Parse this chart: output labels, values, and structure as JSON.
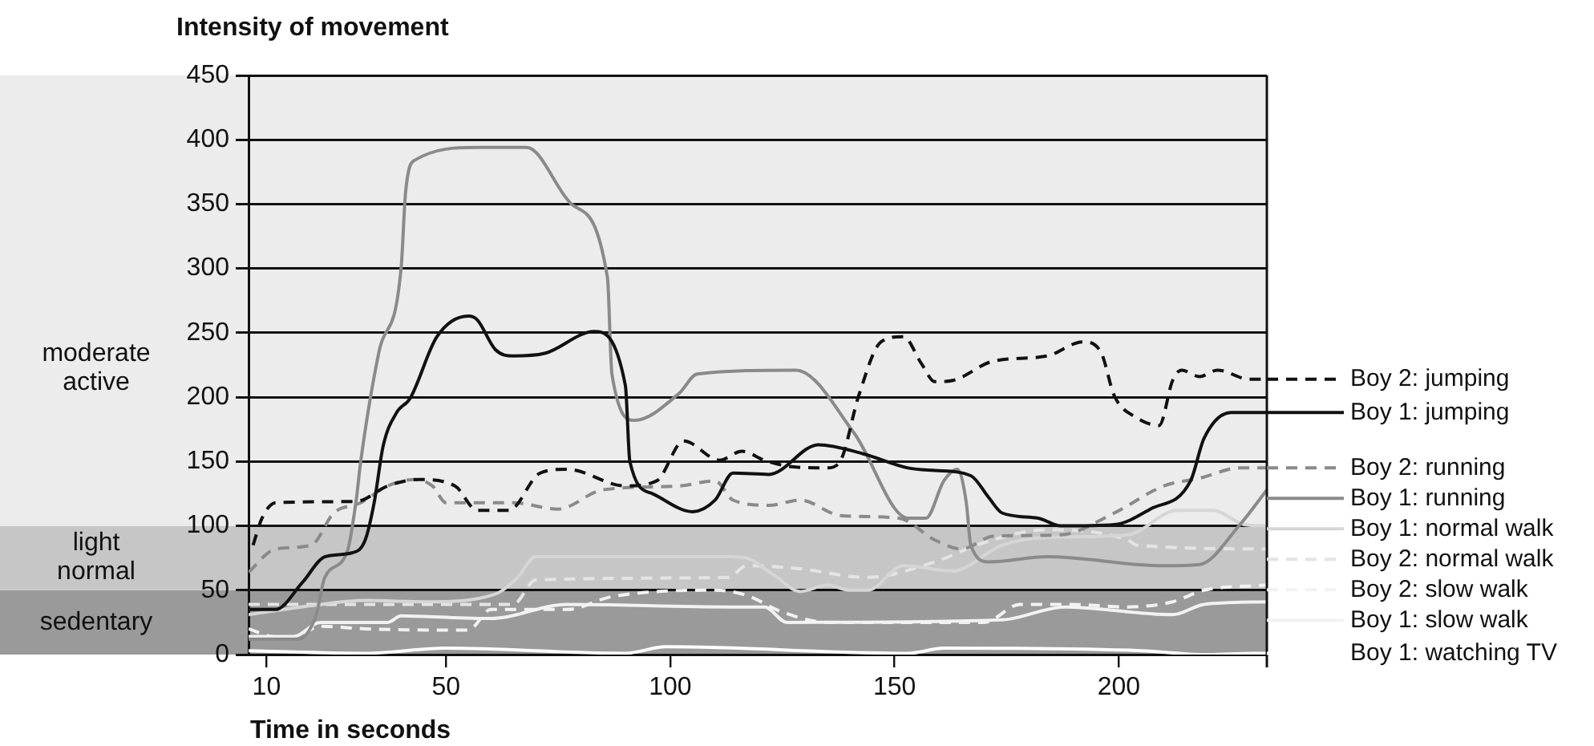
{
  "chart_data": {
    "type": "line",
    "ylabel": "Intensity of movement",
    "xlabel": "Time in seconds",
    "xlim": [
      6,
      233
    ],
    "xticks": [
      10,
      50,
      100,
      150,
      200
    ],
    "ylim": [
      0,
      450
    ],
    "yticks": [
      0,
      50,
      100,
      150,
      200,
      250,
      300,
      350,
      400,
      450
    ],
    "grid": "y",
    "legend": "right",
    "marker": "none",
    "bands": [
      {
        "axis": "y",
        "from": 0,
        "to": 50,
        "label": "sedentary",
        "color": "#9a9a9a"
      },
      {
        "axis": "y",
        "from": 50,
        "to": 100,
        "label": "light normal",
        "color": "#c6c6c6"
      },
      {
        "axis": "y",
        "from": 100,
        "to": 450,
        "label": "moderate active",
        "color": "#ececec"
      }
    ],
    "series": [
      {
        "name": "Boy 2: jumping",
        "color": "#111111",
        "line_style": "dashed",
        "x": [
          7,
          9,
          12,
          30,
          37,
          44,
          52,
          57,
          64,
          71,
          77,
          90,
          97,
          103,
          111,
          116,
          121,
          127,
          135,
          138,
          142,
          147,
          152,
          156,
          159,
          163,
          172,
          184,
          192,
          196,
          199,
          204,
          209,
          212,
          214,
          218,
          222,
          229,
          233
        ],
        "values": [
          85,
          106,
          118,
          119,
          131,
          136,
          131,
          112,
          112,
          141,
          144,
          131,
          135,
          166,
          151,
          158,
          151,
          146,
          145,
          151,
          201,
          243,
          247,
          226,
          212,
          213,
          228,
          232,
          243,
          235,
          201,
          184,
          178,
          213,
          221,
          216,
          221,
          214,
          214
        ]
      },
      {
        "name": "Boy 1: jumping",
        "color": "#111111",
        "line_style": "solid",
        "x": [
          6,
          12,
          18,
          23,
          29,
          32,
          34,
          36,
          39,
          42,
          48,
          55,
          57,
          61,
          65,
          72,
          83,
          90,
          91,
          96,
          105,
          110,
          114,
          122,
          133,
          143,
          153,
          159,
          167,
          171,
          174,
          182,
          187,
          199,
          207,
          216,
          219,
          225,
          233
        ],
        "values": [
          35,
          35,
          56,
          76,
          79,
          89,
          118,
          162,
          188,
          199,
          247,
          263,
          260,
          237,
          232,
          234,
          251,
          209,
          150,
          125,
          111,
          120,
          141,
          140,
          163,
          156,
          145,
          143,
          139,
          122,
          110,
          106,
          100,
          101,
          113,
          135,
          168,
          188,
          188
        ]
      },
      {
        "name": "Boy 2: running",
        "color": "#8a8a8a",
        "line_style": "dashed",
        "x": [
          6,
          12,
          20,
          25,
          31,
          37,
          43,
          47,
          50,
          65,
          75,
          85,
          102,
          110,
          114,
          122,
          129,
          138,
          151,
          159,
          165,
          172,
          187,
          199,
          210,
          218,
          227,
          233
        ],
        "values": [
          64,
          82,
          85,
          110,
          118,
          131,
          136,
          131,
          118,
          118,
          113,
          128,
          131,
          135,
          120,
          116,
          120,
          108,
          106,
          89,
          82,
          92,
          93,
          110,
          131,
          137,
          145,
          145
        ]
      },
      {
        "name": "Boy 1: running",
        "color": "#8a8a8a",
        "line_style": "solid",
        "x": [
          6,
          17,
          21,
          23,
          28,
          30,
          31,
          35,
          40,
          41,
          43,
          57,
          68,
          78,
          86,
          87,
          92,
          102,
          106,
          128,
          141,
          153,
          157,
          161,
          164,
          166,
          167,
          171,
          184,
          210,
          218,
          227,
          233
        ],
        "values": [
          12,
          12,
          30,
          60,
          80,
          120,
          150,
          234,
          300,
          359,
          384,
          394,
          394,
          350,
          293,
          218,
          182,
          203,
          218,
          221,
          172,
          106,
          106,
          135,
          144,
          118,
          85,
          72,
          76,
          69,
          70,
          101,
          128
        ]
      },
      {
        "name": "Boy 1: normal walk",
        "color": "#d6d6d6",
        "line_style": "solid",
        "x": [
          6,
          20,
          32,
          46,
          61,
          66,
          70,
          113,
          117,
          123,
          129,
          135,
          140,
          144,
          152,
          163,
          174,
          184,
          202,
          213,
          221,
          228,
          233
        ],
        "values": [
          31,
          38,
          42,
          41,
          47,
          60,
          76,
          76,
          75,
          62,
          49,
          54,
          50,
          50,
          69,
          65,
          85,
          91,
          93,
          112,
          112,
          101,
          100
        ]
      },
      {
        "name": "Boy 2: normal walk",
        "color": "#e4e4e4",
        "line_style": "dashed",
        "x": [
          6,
          65,
          70,
          113,
          117,
          128,
          144,
          159,
          170,
          184,
          202,
          204,
          233
        ],
        "values": [
          39,
          39,
          58,
          60,
          69,
          67,
          60,
          72,
          87,
          97,
          89,
          85,
          82
        ]
      },
      {
        "name": "Boy 2: slow walk",
        "color": "#f2f2f2",
        "line_style": "dashed",
        "x": [
          6,
          11,
          16,
          22,
          32,
          55,
          60,
          77,
          87,
          110,
          117,
          125,
          135,
          170,
          178,
          189,
          202,
          212,
          219,
          233
        ],
        "values": [
          20,
          14,
          13,
          22,
          20,
          19,
          35,
          35,
          45,
          50,
          46,
          33,
          25,
          25,
          39,
          39,
          37,
          41,
          50,
          54
        ]
      },
      {
        "name": "Boy 1: slow walk",
        "color": "#f2f2f2",
        "line_style": "solid",
        "x": [
          6,
          16,
          22,
          37,
          40,
          60,
          77,
          113,
          121,
          126,
          174,
          188,
          212,
          219,
          233
        ],
        "values": [
          14,
          14,
          25,
          25,
          30,
          28,
          39,
          37,
          37,
          25,
          27,
          37,
          31,
          39,
          41
        ]
      },
      {
        "name": "Boy 1: watching TV",
        "color": "#ffffff",
        "line_style": "solid",
        "x": [
          6,
          32,
          50,
          90,
          99,
          153,
          161,
          205,
          219,
          230,
          233
        ],
        "values": [
          3,
          1,
          5,
          1,
          6,
          1,
          5,
          3,
          0,
          1,
          1
        ]
      }
    ]
  }
}
